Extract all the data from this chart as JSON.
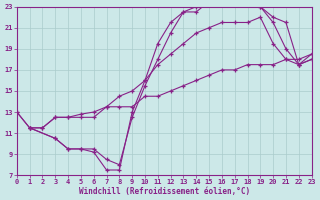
{
  "xlabel": "Windchill (Refroidissement éolien,°C)",
  "xlim": [
    0,
    23
  ],
  "ylim": [
    7,
    23
  ],
  "xticks": [
    0,
    1,
    2,
    3,
    4,
    5,
    6,
    7,
    8,
    9,
    10,
    11,
    12,
    13,
    14,
    15,
    16,
    17,
    18,
    19,
    20,
    21,
    22,
    23
  ],
  "yticks": [
    7,
    9,
    11,
    13,
    15,
    17,
    19,
    21,
    23
  ],
  "bg_color": "#cce8e8",
  "line_color": "#882288",
  "grid_color": "#aacccc",
  "line1_x": [
    0,
    1,
    2,
    3,
    4,
    5,
    6,
    7,
    8,
    9,
    10,
    11,
    12,
    13,
    14,
    15,
    16,
    17,
    18,
    19,
    20,
    21,
    22,
    23
  ],
  "line1_y": [
    13.0,
    11.5,
    11.5,
    12.5,
    12.5,
    12.5,
    12.5,
    13.5,
    13.5,
    13.5,
    14.5,
    14.5,
    15.0,
    15.5,
    16.0,
    16.5,
    17.0,
    17.0,
    17.5,
    17.5,
    17.5,
    18.0,
    18.0,
    18.5
  ],
  "line2_x": [
    1,
    3,
    4,
    5,
    6,
    7,
    8,
    9,
    10,
    11,
    12,
    13,
    14,
    15,
    16,
    17,
    18,
    19,
    20,
    21,
    22,
    23
  ],
  "line2_y": [
    11.5,
    10.5,
    9.5,
    9.5,
    9.5,
    8.5,
    8.0,
    12.5,
    15.5,
    18.0,
    20.5,
    22.5,
    22.5,
    23.5,
    23.5,
    23.5,
    23.5,
    23.0,
    22.0,
    21.5,
    17.5,
    18.0
  ],
  "line3_x": [
    1,
    3,
    4,
    5,
    6,
    7,
    8,
    9,
    10,
    11,
    12,
    13,
    14,
    15,
    16,
    17,
    18,
    19,
    20,
    21,
    22,
    23
  ],
  "line3_y": [
    11.5,
    10.5,
    9.5,
    9.5,
    9.2,
    7.5,
    7.5,
    13.0,
    16.0,
    19.5,
    21.5,
    22.5,
    23.0,
    23.5,
    23.5,
    23.5,
    23.5,
    23.0,
    21.5,
    19.0,
    17.5,
    18.5
  ],
  "line4_x": [
    0,
    1,
    2,
    3,
    4,
    5,
    6,
    7,
    8,
    9,
    10,
    11,
    12,
    13,
    14,
    15,
    16,
    17,
    18,
    19,
    20,
    21,
    22,
    23
  ],
  "line4_y": [
    13.0,
    11.5,
    11.5,
    12.5,
    12.5,
    12.8,
    13.0,
    13.5,
    14.5,
    15.0,
    16.0,
    17.5,
    18.5,
    19.5,
    20.5,
    21.0,
    21.5,
    21.5,
    21.5,
    22.0,
    19.5,
    18.0,
    17.5,
    18.0
  ]
}
